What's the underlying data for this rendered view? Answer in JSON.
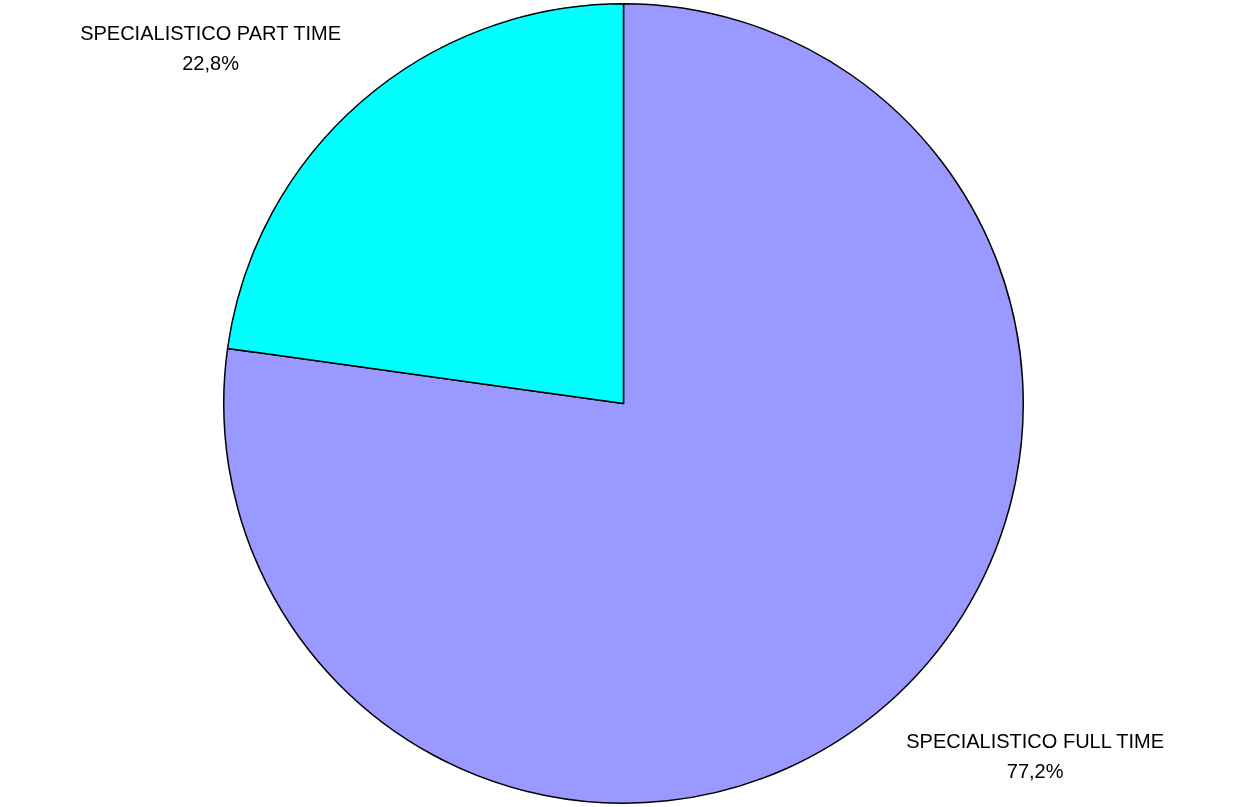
{
  "chart_data": {
    "type": "pie",
    "categories": [
      "SPECIALISTICO FULL TIME",
      "SPECIALISTICO PART TIME"
    ],
    "values": [
      77.2,
      22.8
    ],
    "value_labels": [
      "77,2%",
      "22,8%"
    ],
    "colors": [
      "#9999ff",
      "#00ffff"
    ],
    "legend": false
  }
}
